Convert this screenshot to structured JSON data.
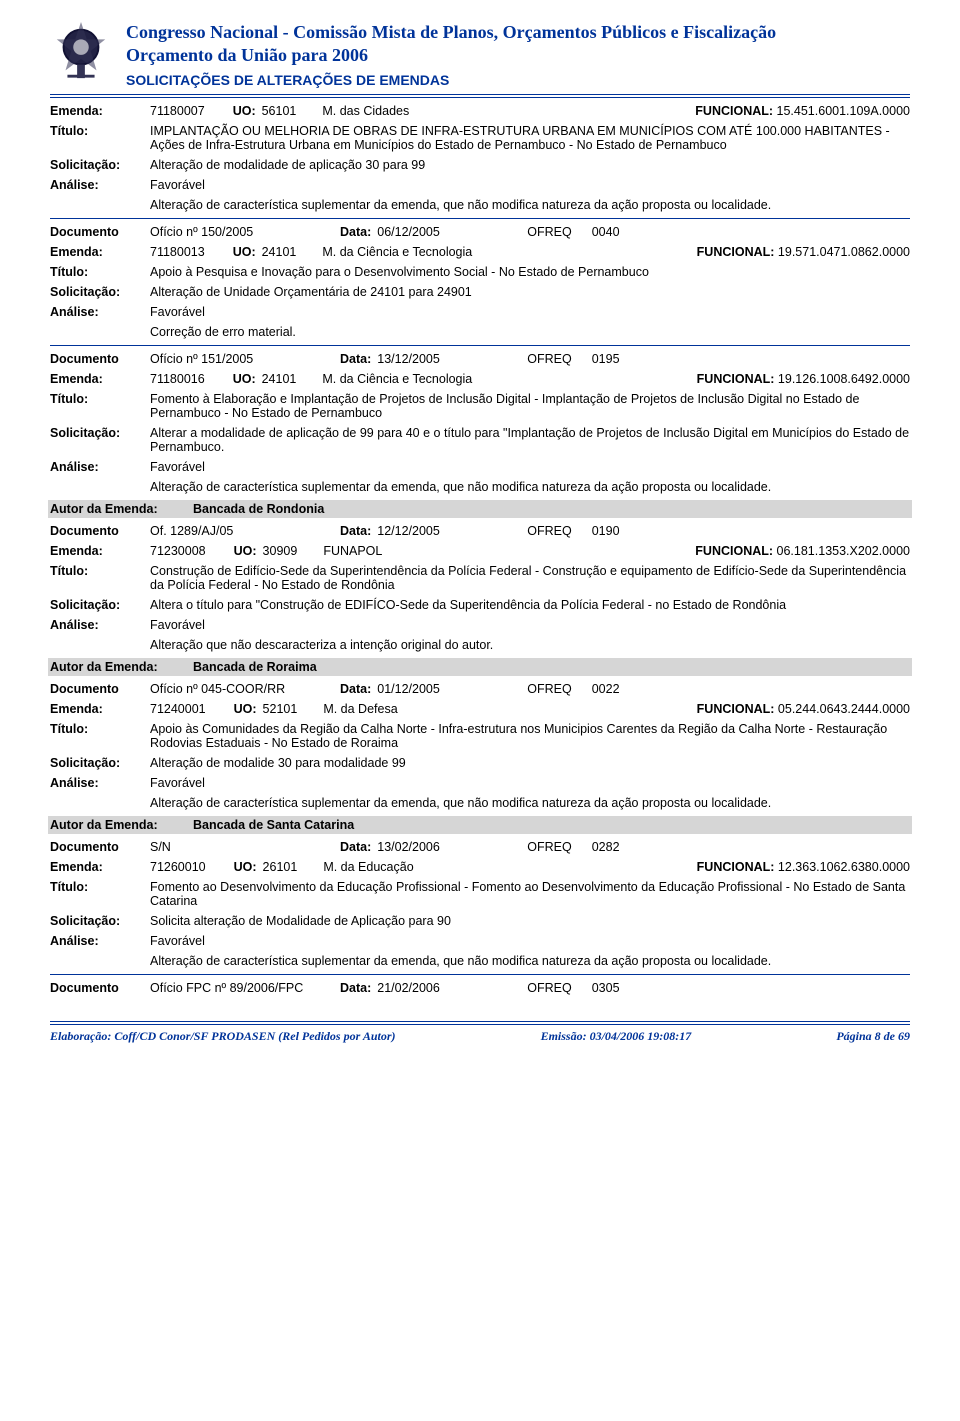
{
  "header": {
    "line1": "Congresso Nacional - Comissão Mista de Planos, Orçamentos Públicos e Fiscalização",
    "line2": "Orçamento da União para 2006",
    "line3": "SOLICITAÇÕES DE ALTERAÇÕES DE EMENDAS"
  },
  "labels": {
    "emenda": "Emenda:",
    "uo": "UO:",
    "funcional": "FUNCIONAL:",
    "titulo": "Título:",
    "solicitacao": "Solicitação:",
    "analise": "Análise:",
    "documento": "Documento",
    "data": "Data:",
    "ofreq": "OFREQ",
    "autor": "Autor da Emenda:"
  },
  "sections": [
    {
      "emenda": {
        "num": "71180007",
        "uo": "56101",
        "uo_name": "M. das Cidades",
        "func": "15.451.6001.109A.0000"
      },
      "titulo": "IMPLANTAÇÃO OU MELHORIA DE OBRAS DE INFRA-ESTRUTURA URBANA EM MUNICÍPIOS COM ATÉ 100.000 HABITANTES - Ações de Infra-Estrutura Urbana em Municípios do Estado de Pernambuco - No Estado de Pernambuco",
      "solicitacao": "Alteração de modalidade de aplicação 30 para 99",
      "analise": "Favorável",
      "analise_desc": "Alteração de característica suplementar da emenda, que não modifica natureza da ação proposta ou localidade."
    },
    {
      "doc": {
        "id": "Ofício nº 150/2005",
        "data": "06/12/2005",
        "ofreq": "0040"
      },
      "emenda": {
        "num": "71180013",
        "uo": "24101",
        "uo_name": "M. da Ciência e Tecnologia",
        "func": "19.571.0471.0862.0000"
      },
      "titulo": "Apoio à Pesquisa e Inovação para o Desenvolvimento Social - No Estado de Pernambuco",
      "solicitacao": "Alteração de Unidade Orçamentária de 24101 para 24901",
      "analise": "Favorável",
      "analise_desc": "Correção de erro material."
    },
    {
      "doc": {
        "id": "Ofício nº 151/2005",
        "data": "13/12/2005",
        "ofreq": "0195"
      },
      "emenda": {
        "num": "71180016",
        "uo": "24101",
        "uo_name": "M. da Ciência e Tecnologia",
        "func": "19.126.1008.6492.0000"
      },
      "titulo": "Fomento à Elaboração e Implantação de Projetos de Inclusão Digital - Implantação de Projetos de Inclusão Digital no Estado de Pernambuco - No Estado de Pernambuco",
      "solicitacao": "Alterar a modalidade de aplicação de 99 para 40 e o título para \"Implantação de Projetos de Inclusão Digital em Municípios do Estado de Pernambuco.",
      "analise": "Favorável",
      "analise_desc": "Alteração de característica suplementar da emenda, que não modifica natureza da ação proposta ou localidade."
    },
    {
      "author": "Bancada de Rondonia",
      "doc": {
        "id": "Of. 1289/AJ/05",
        "data": "12/12/2005",
        "ofreq": "0190"
      },
      "emenda": {
        "num": "71230008",
        "uo": "30909",
        "uo_name": "FUNAPOL",
        "func": "06.181.1353.X202.0000"
      },
      "titulo": "Construção de Edifício-Sede da Superintendência da Polícia Federal - Construção e equipamento de Edifício-Sede da Superintendência da Polícia Federal - No Estado de Rondônia",
      "solicitacao": "Altera o título para \"Construção de EDIFÍCO-Sede da Superitendência da Polícia Federal - no Estado de Rondônia",
      "analise": "Favorável",
      "analise_desc": "Alteração que não descaracteriza a intenção original do autor."
    },
    {
      "author": "Bancada de Roraima",
      "doc": {
        "id": "Ofício nº 045-COOR/RR",
        "data": "01/12/2005",
        "ofreq": "0022"
      },
      "emenda": {
        "num": "71240001",
        "uo": "52101",
        "uo_name": "M. da Defesa",
        "func": "05.244.0643.2444.0000"
      },
      "titulo": "Apoio às Comunidades da Região da Calha Norte - Infra-estrutura nos Municipios Carentes da Região da Calha Norte - Restauração Rodovias Estaduais - No Estado de Roraima",
      "solicitacao": "Alteração de modalide 30 para modalidade 99",
      "analise": "Favorável",
      "analise_desc": "Alteração de característica suplementar da emenda, que não modifica natureza da ação proposta ou localidade."
    },
    {
      "author": "Bancada de Santa Catarina",
      "doc": {
        "id": "S/N",
        "data": "13/02/2006",
        "ofreq": "0282"
      },
      "emenda": {
        "num": "71260010",
        "uo": "26101",
        "uo_name": "M. da Educação",
        "func": "12.363.1062.6380.0000"
      },
      "titulo": "Fomento ao Desenvolvimento da Educação Profissional - Fomento ao Desenvolvimento da Educação Profissional - No Estado de Santa Catarina",
      "solicitacao": "Solicita alteração de  Modalidade de Aplicação para 90",
      "analise": "Favorável",
      "analise_desc": "Alteração de característica suplementar da emenda, que não modifica natureza da ação proposta ou localidade."
    },
    {
      "doc": {
        "id": "Ofício FPC nº 89/2006/FPC",
        "data": "21/02/2006",
        "ofreq": "0305"
      }
    }
  ],
  "footer": {
    "left": "Elaboração: Coff/CD Conor/SF PRODASEN (Rel Pedidos por Autor)",
    "mid": "Emissão: 03/04/2006 19:08:17",
    "right": "Página 8 de 69"
  }
}
